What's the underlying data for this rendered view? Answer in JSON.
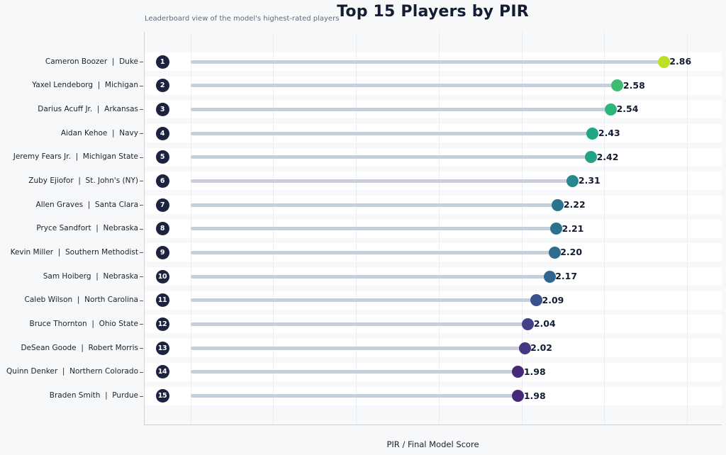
{
  "chart_data": {
    "type": "bar",
    "subtype": "horizontal-lollipop",
    "title": "Top 15 Players by PIR",
    "subtitle": "Leaderboard view of the model's highest-rated players",
    "xlabel": "PIR / Final Model Score",
    "ylabel": "",
    "xlim": [
      -0.28,
      3.22
    ],
    "xticks": [
      0.0,
      0.5,
      1.0,
      1.5,
      2.0,
      2.5,
      3.0
    ],
    "grid": "vertical",
    "legend": "none",
    "rows": [
      {
        "rank": "1",
        "player": "Cameron Boozer",
        "team": "Duke",
        "label": "Cameron Boozer  |  Duke",
        "value": 2.86,
        "value_label": "2.86",
        "dot_color": "#bddf26"
      },
      {
        "rank": "2",
        "player": "Yaxel Lendeborg",
        "team": "Michigan",
        "label": "Yaxel Lendeborg  |  Michigan",
        "value": 2.58,
        "value_label": "2.58",
        "dot_color": "#3fbc73"
      },
      {
        "rank": "3",
        "player": "Darius Acuff Jr.",
        "team": "Arkansas",
        "label": "Darius Acuff Jr.  |  Arkansas",
        "value": 2.54,
        "value_label": "2.54",
        "dot_color": "#2fb47c"
      },
      {
        "rank": "4",
        "player": "Aidan Kehoe",
        "team": "Navy",
        "label": "Aidan Kehoe  |  Navy",
        "value": 2.43,
        "value_label": "2.43",
        "dot_color": "#21a685"
      },
      {
        "rank": "5",
        "player": "Jeremy Fears Jr.",
        "team": "Michigan State",
        "label": "Jeremy Fears Jr.  |  Michigan State",
        "value": 2.42,
        "value_label": "2.42",
        "dot_color": "#20a386"
      },
      {
        "rank": "6",
        "player": "Zuby Ejiofor",
        "team": "St. John's (NY)",
        "label": "Zuby Ejiofor  |  St. John's (NY)",
        "value": 2.31,
        "value_label": "2.31",
        "dot_color": "#26898d"
      },
      {
        "rank": "7",
        "player": "Allen Graves",
        "team": "Santa Clara",
        "label": "Allen Graves  |  Santa Clara",
        "value": 2.22,
        "value_label": "2.22",
        "dot_color": "#2c748e"
      },
      {
        "rank": "8",
        "player": "Pryce Sandfort",
        "team": "Nebraska",
        "label": "Pryce Sandfort  |  Nebraska",
        "value": 2.21,
        "value_label": "2.21",
        "dot_color": "#2d718e"
      },
      {
        "rank": "9",
        "player": "Kevin Miller",
        "team": "Southern Methodist",
        "label": "Kevin Miller  |  Southern Methodist",
        "value": 2.2,
        "value_label": "2.20",
        "dot_color": "#2e6d8e"
      },
      {
        "rank": "10",
        "player": "Sam Hoiberg",
        "team": "Nebraska",
        "label": "Sam Hoiberg  |  Nebraska",
        "value": 2.17,
        "value_label": "2.17",
        "dot_color": "#31668e"
      },
      {
        "rank": "11",
        "player": "Caleb Wilson",
        "team": "North Carolina",
        "label": "Caleb Wilson  |  North Carolina",
        "value": 2.09,
        "value_label": "2.09",
        "dot_color": "#3b518b"
      },
      {
        "rank": "12",
        "player": "Bruce Thornton",
        "team": "Ohio State",
        "label": "Bruce Thornton  |  Ohio State",
        "value": 2.04,
        "value_label": "2.04",
        "dot_color": "#424086"
      },
      {
        "rank": "13",
        "player": "DeSean Goode",
        "team": "Robert Morris",
        "label": "DeSean Goode  |  Robert Morris",
        "value": 2.02,
        "value_label": "2.02",
        "dot_color": "#453781"
      },
      {
        "rank": "14",
        "player": "Quinn Denker",
        "team": "Northern Colorado",
        "label": "Quinn Denker  |  Northern Colorado",
        "value": 1.98,
        "value_label": "1.98",
        "dot_color": "#482878"
      },
      {
        "rank": "15",
        "player": "Braden Smith",
        "team": "Purdue",
        "label": "Braden Smith  |  Purdue",
        "value": 1.98,
        "value_label": "1.98",
        "dot_color": "#482878"
      }
    ],
    "colors": {
      "background": "#f7f8fa",
      "row_band": "#ffffff",
      "stem": "#c6cfdc",
      "grid": "#e9ecf1",
      "spine": "#ccd1da",
      "badge_bg": "#1b2340",
      "badge_text": "#ffffff",
      "title_text": "#121c33",
      "subtitle_text": "#5f6b7e",
      "tick_text": "#1c2129"
    }
  }
}
